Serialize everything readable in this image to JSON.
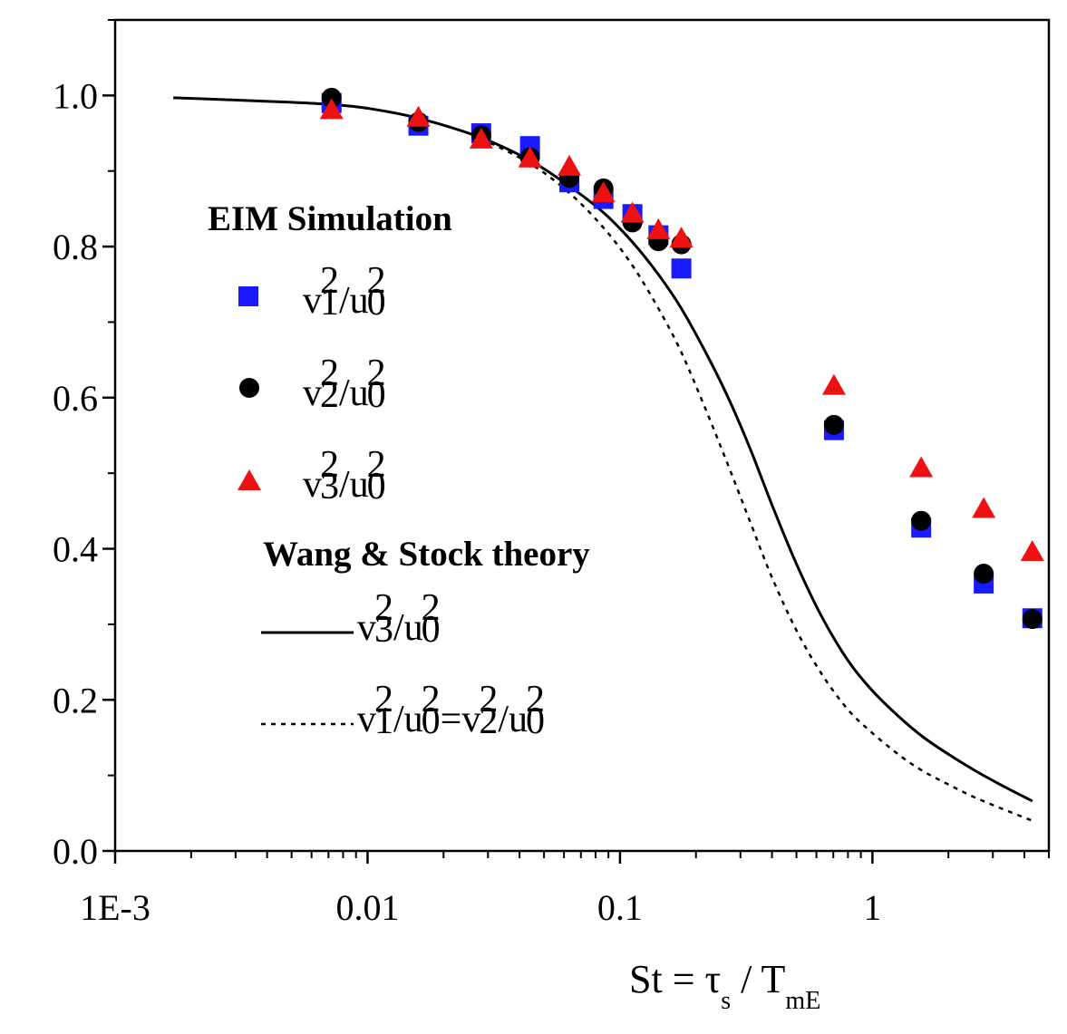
{
  "chart_data": {
    "type": "scatter",
    "title": "",
    "xscale": "log",
    "xlim": [
      0.001,
      5
    ],
    "ylim": [
      0.0,
      1.1
    ],
    "xticks": [
      {
        "value": 0.001,
        "label": "1E-3"
      },
      {
        "value": 0.01,
        "label": "0.01"
      },
      {
        "value": 0.1,
        "label": "0.1"
      },
      {
        "value": 1,
        "label": "1"
      }
    ],
    "yticks": [
      {
        "value": 0.0,
        "label": "0.0"
      },
      {
        "value": 0.2,
        "label": "0.2"
      },
      {
        "value": 0.4,
        "label": "0.4"
      },
      {
        "value": 0.6,
        "label": "0.6"
      },
      {
        "value": 0.8,
        "label": "0.8"
      },
      {
        "value": 1.0,
        "label": "1.0"
      }
    ],
    "xlabel": {
      "main": "St = τ",
      "sub1": "s",
      "mid": " / T",
      "sub2": "mE"
    },
    "legend": {
      "sim_title": "EIM Simulation",
      "theory_title": "Wang & Stock theory"
    },
    "series": [
      {
        "name": "v1^2/u0^2",
        "label": {
          "a": "v",
          "a_sup": "2",
          "a_sub": "1",
          "slash": "/u",
          "b_sup": "2",
          "b_sub": "0"
        },
        "marker": "square",
        "color": "#1a1aff",
        "x": [
          0.0072,
          0.0159,
          0.0282,
          0.044,
          0.063,
          0.086,
          0.112,
          0.142,
          0.175,
          0.704,
          1.56,
          2.76,
          4.3
        ],
        "y": [
          0.99,
          0.96,
          0.95,
          0.933,
          0.885,
          0.863,
          0.843,
          0.815,
          0.771,
          0.557,
          0.428,
          0.354,
          0.308
        ]
      },
      {
        "name": "v2^2/u0^2",
        "label": {
          "a": "v",
          "a_sup": "2",
          "a_sub": "2",
          "slash": "/u",
          "b_sup": "2",
          "b_sub": "0"
        },
        "marker": "circle",
        "color": "#000000",
        "x": [
          0.0072,
          0.0159,
          0.0282,
          0.044,
          0.063,
          0.086,
          0.112,
          0.142,
          0.175,
          0.704,
          1.56,
          2.76,
          4.3
        ],
        "y": [
          0.997,
          0.965,
          0.947,
          0.918,
          0.891,
          0.877,
          0.832,
          0.807,
          0.803,
          0.564,
          0.437,
          0.367,
          0.307
        ]
      },
      {
        "name": "v3^2/u0^2",
        "label": {
          "a": "v",
          "a_sup": "2",
          "a_sub": "3",
          "slash": "/u",
          "b_sup": "2",
          "b_sub": "0"
        },
        "marker": "triangle",
        "color": "#ee1111",
        "x": [
          0.0072,
          0.0159,
          0.0282,
          0.044,
          0.063,
          0.086,
          0.112,
          0.142,
          0.175,
          0.704,
          1.56,
          2.76,
          4.3
        ],
        "y": [
          0.982,
          0.972,
          0.943,
          0.918,
          0.907,
          0.872,
          0.845,
          0.823,
          0.812,
          0.617,
          0.508,
          0.454,
          0.397
        ]
      },
      {
        "name": "theory v3^2/u0^2",
        "label": {
          "a": "v",
          "a_sup": "2",
          "a_sub": "3",
          "slash": "/u",
          "b_sup": "2",
          "b_sub": "0"
        },
        "type": "line",
        "style": "solid",
        "color": "#000000",
        "x": [
          0.0017,
          0.003,
          0.005,
          0.0072,
          0.01,
          0.0159,
          0.0282,
          0.044,
          0.063,
          0.086,
          0.112,
          0.142,
          0.175,
          0.22,
          0.27,
          0.33,
          0.4,
          0.5,
          0.63,
          0.8,
          1.0,
          1.3,
          1.6,
          2.0,
          2.5,
          3.2,
          4.3
        ],
        "y": [
          0.997,
          0.994,
          0.991,
          0.988,
          0.983,
          0.97,
          0.944,
          0.914,
          0.88,
          0.845,
          0.806,
          0.763,
          0.718,
          0.658,
          0.598,
          0.53,
          0.458,
          0.38,
          0.31,
          0.252,
          0.212,
          0.175,
          0.15,
          0.128,
          0.108,
          0.088,
          0.066
        ]
      },
      {
        "name": "theory v1^2/u0^2=v2^2/u0^2",
        "label": {
          "a": "v",
          "a_sup": "2",
          "a_sub": "1",
          "slash": "/u",
          "b_sup": "2",
          "b_sub": "0",
          "eq": "=v",
          "c_sup": "2",
          "c_sub": "2",
          "slash2": "/u",
          "d_sup": "2",
          "d_sub": "0"
        },
        "type": "line",
        "style": "dotted",
        "color": "#000000",
        "x": [
          0.0282,
          0.044,
          0.063,
          0.086,
          0.112,
          0.142,
          0.175,
          0.22,
          0.27,
          0.33,
          0.4,
          0.5,
          0.63,
          0.8,
          1.0,
          1.3,
          1.6,
          2.0,
          2.5,
          3.2,
          4.3
        ],
        "y": [
          0.943,
          0.91,
          0.871,
          0.825,
          0.775,
          0.718,
          0.66,
          0.582,
          0.508,
          0.433,
          0.362,
          0.292,
          0.234,
          0.187,
          0.156,
          0.125,
          0.105,
          0.088,
          0.072,
          0.057,
          0.04
        ]
      }
    ]
  }
}
